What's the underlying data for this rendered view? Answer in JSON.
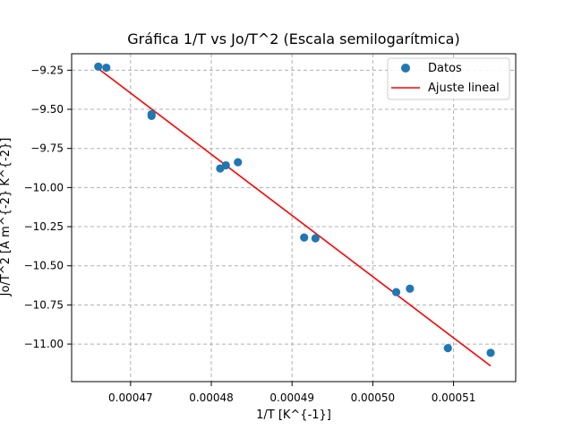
{
  "chart_data": {
    "type": "scatter",
    "title": "Gráfica 1/T vs Jo/T^2 (Escala semilogarítmica)",
    "xlabel": "1/T [K^{-1}]",
    "ylabel": "Jo/T^2 [A m^{-2} K^{-2}]",
    "xlim": [
      0.0004627,
      0.0005177
    ],
    "ylim": [
      -11.24,
      -9.145
    ],
    "x_ticks": [
      {
        "value": 0.00047,
        "label": "0.00047"
      },
      {
        "value": 0.00048,
        "label": "0.00048"
      },
      {
        "value": 0.00049,
        "label": "0.00049"
      },
      {
        "value": 0.0005,
        "label": "0.00050"
      },
      {
        "value": 0.00051,
        "label": "0.00051"
      }
    ],
    "y_ticks": [
      {
        "value": -9.25,
        "label": "−9.25"
      },
      {
        "value": -9.5,
        "label": "−9.50"
      },
      {
        "value": -9.75,
        "label": "−9.75"
      },
      {
        "value": -10.0,
        "label": "−10.00"
      },
      {
        "value": -10.25,
        "label": "−10.25"
      },
      {
        "value": -10.5,
        "label": "−10.50"
      },
      {
        "value": -10.75,
        "label": "−10.75"
      },
      {
        "value": -11.0,
        "label": "−11.00"
      }
    ],
    "grid": true,
    "legend_position": "top-right",
    "series": [
      {
        "name": "Datos",
        "kind": "scatter",
        "color": "#1f77b4",
        "points": [
          {
            "x": 0.000466,
            "y": -9.227
          },
          {
            "x": 0.000467,
            "y": -9.234
          },
          {
            "x": 0.0004726,
            "y": -9.531
          },
          {
            "x": 0.0004726,
            "y": -9.542
          },
          {
            "x": 0.0004811,
            "y": -9.878
          },
          {
            "x": 0.0004818,
            "y": -9.858
          },
          {
            "x": 0.0004833,
            "y": -9.838
          },
          {
            "x": 0.0004915,
            "y": -10.319
          },
          {
            "x": 0.0004929,
            "y": -10.324
          },
          {
            "x": 0.0005029,
            "y": -10.668
          },
          {
            "x": 0.0005046,
            "y": -10.646
          },
          {
            "x": 0.0005093,
            "y": -11.026
          },
          {
            "x": 0.0005146,
            "y": -11.056
          }
        ]
      },
      {
        "name": "Ajuste lineal",
        "kind": "line",
        "color": "#ff0000",
        "points": [
          {
            "x": 0.000466,
            "y": -9.24
          },
          {
            "x": 0.0005146,
            "y": -11.14
          }
        ]
      }
    ]
  }
}
